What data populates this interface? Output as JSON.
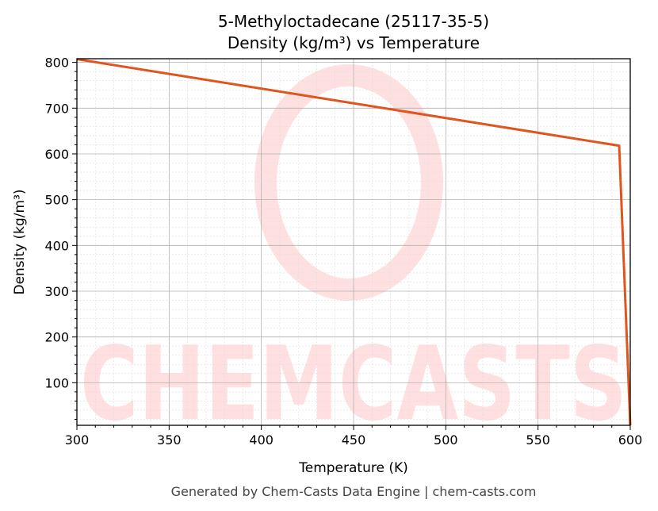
{
  "chart_data": {
    "type": "line",
    "title": "5-Methyloctadecane (25117-35-5)",
    "subtitle": "Density (kg/m³) vs Temperature",
    "xlabel": "Temperature (K)",
    "ylabel": "Density (kg/m³)",
    "xlim": [
      300,
      600
    ],
    "ylim": [
      7,
      808
    ],
    "xticks": [
      300,
      350,
      400,
      450,
      500,
      550,
      600
    ],
    "yticks": [
      100,
      200,
      300,
      400,
      500,
      600,
      700,
      800
    ],
    "grid": true,
    "series": [
      {
        "name": "Density",
        "color": "#e0541e",
        "x": [
          300,
          594,
          600
        ],
        "y": [
          807,
          618,
          7
        ]
      }
    ]
  },
  "footer": "Generated by Chem-Casts Data Engine | chem-casts.com",
  "watermark": "CHEMCASTS"
}
